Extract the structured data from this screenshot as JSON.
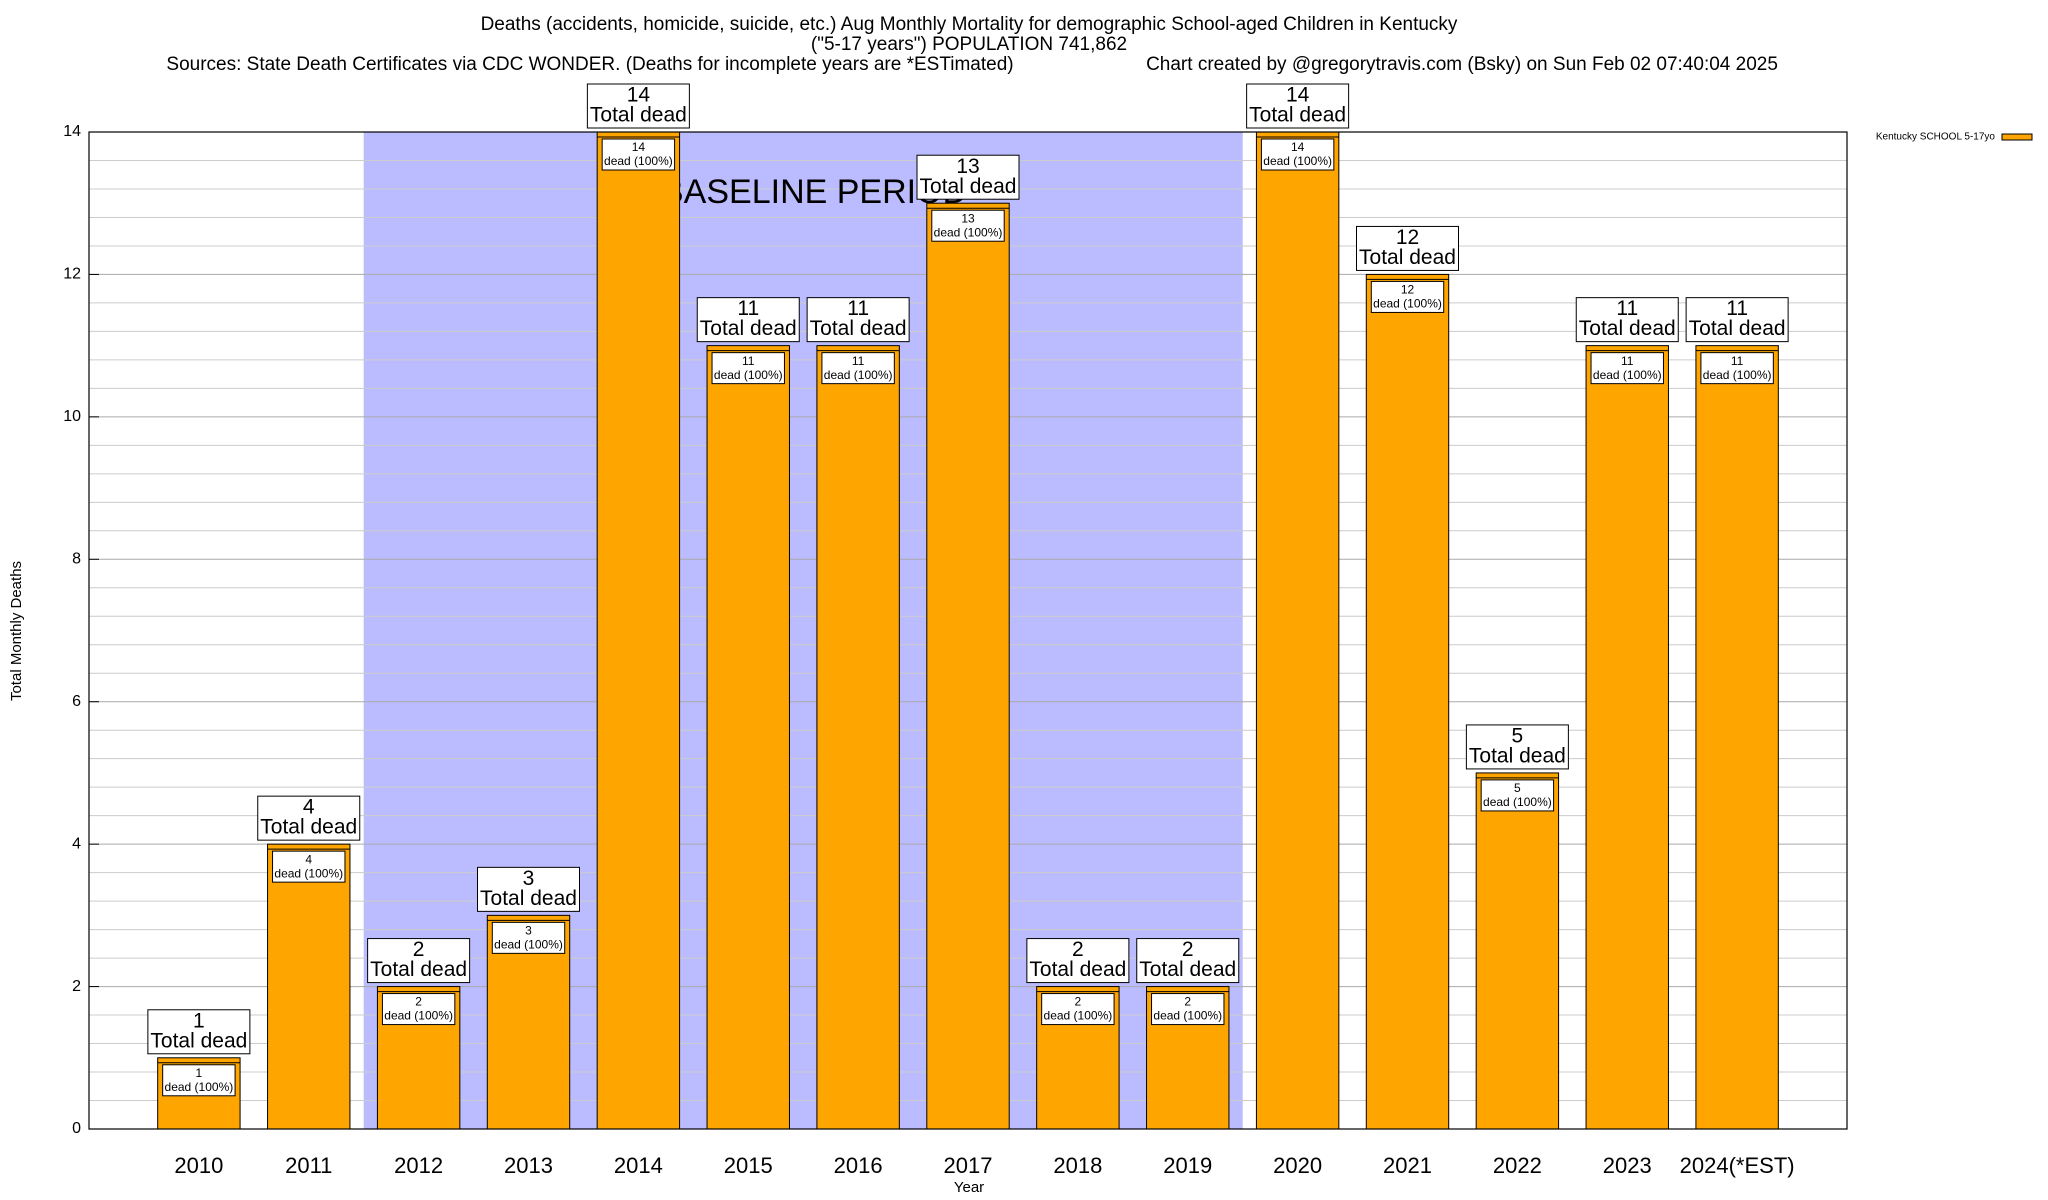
{
  "chart_data": {
    "type": "bar",
    "title": "Deaths (accidents, homicide, suicide, etc.) Aug Monthly Mortality for demographic School-aged Children in Kentucky",
    "subtitle": "(\"5-17 years\") POPULATION 741,862",
    "sources": "Sources: State Death Certificates via CDC WONDER. (Deaths for incomplete years are *ESTimated)",
    "credit": "Chart created by @gregorytravis.com (Bsky) on Sun Feb 02 07:40:04 2025",
    "x_label": "Year",
    "y_label": "Total Monthly Deaths",
    "categories": [
      "2010",
      "2011",
      "2012",
      "2013",
      "2014",
      "2015",
      "2016",
      "2017",
      "2018",
      "2019",
      "2020",
      "2021",
      "2022",
      "2023",
      "2024(*EST)"
    ],
    "series": [
      {
        "name": "Kentucky SCHOOL 5-17yo",
        "color": "#ffa500",
        "values": [
          1,
          4,
          2,
          3,
          14,
          11,
          11,
          13,
          2,
          2,
          14,
          12,
          5,
          11,
          11
        ]
      }
    ],
    "total_label": "Total dead",
    "segment_label": "dead (100%)",
    "highlight": {
      "label": "BASELINE PERIOD",
      "from_index": 2,
      "to_index": 9,
      "color": "#bbbbff"
    },
    "ylim": [
      0,
      14
    ],
    "yticks": [
      0,
      2,
      4,
      6,
      8,
      10,
      12,
      14
    ],
    "y_minor_ticks": [
      0.4,
      0.8,
      1.2,
      1.6,
      2.4,
      2.8,
      3.2,
      3.6,
      4.4,
      4.8,
      5.2,
      5.6,
      6.4,
      6.8,
      7.2,
      7.6,
      8.4,
      8.8,
      9.2,
      9.6,
      10.4,
      10.8,
      11.2,
      11.6,
      12.4,
      12.8,
      13.2,
      13.6
    ],
    "grid": true,
    "legend_position": "top-right-outside"
  }
}
